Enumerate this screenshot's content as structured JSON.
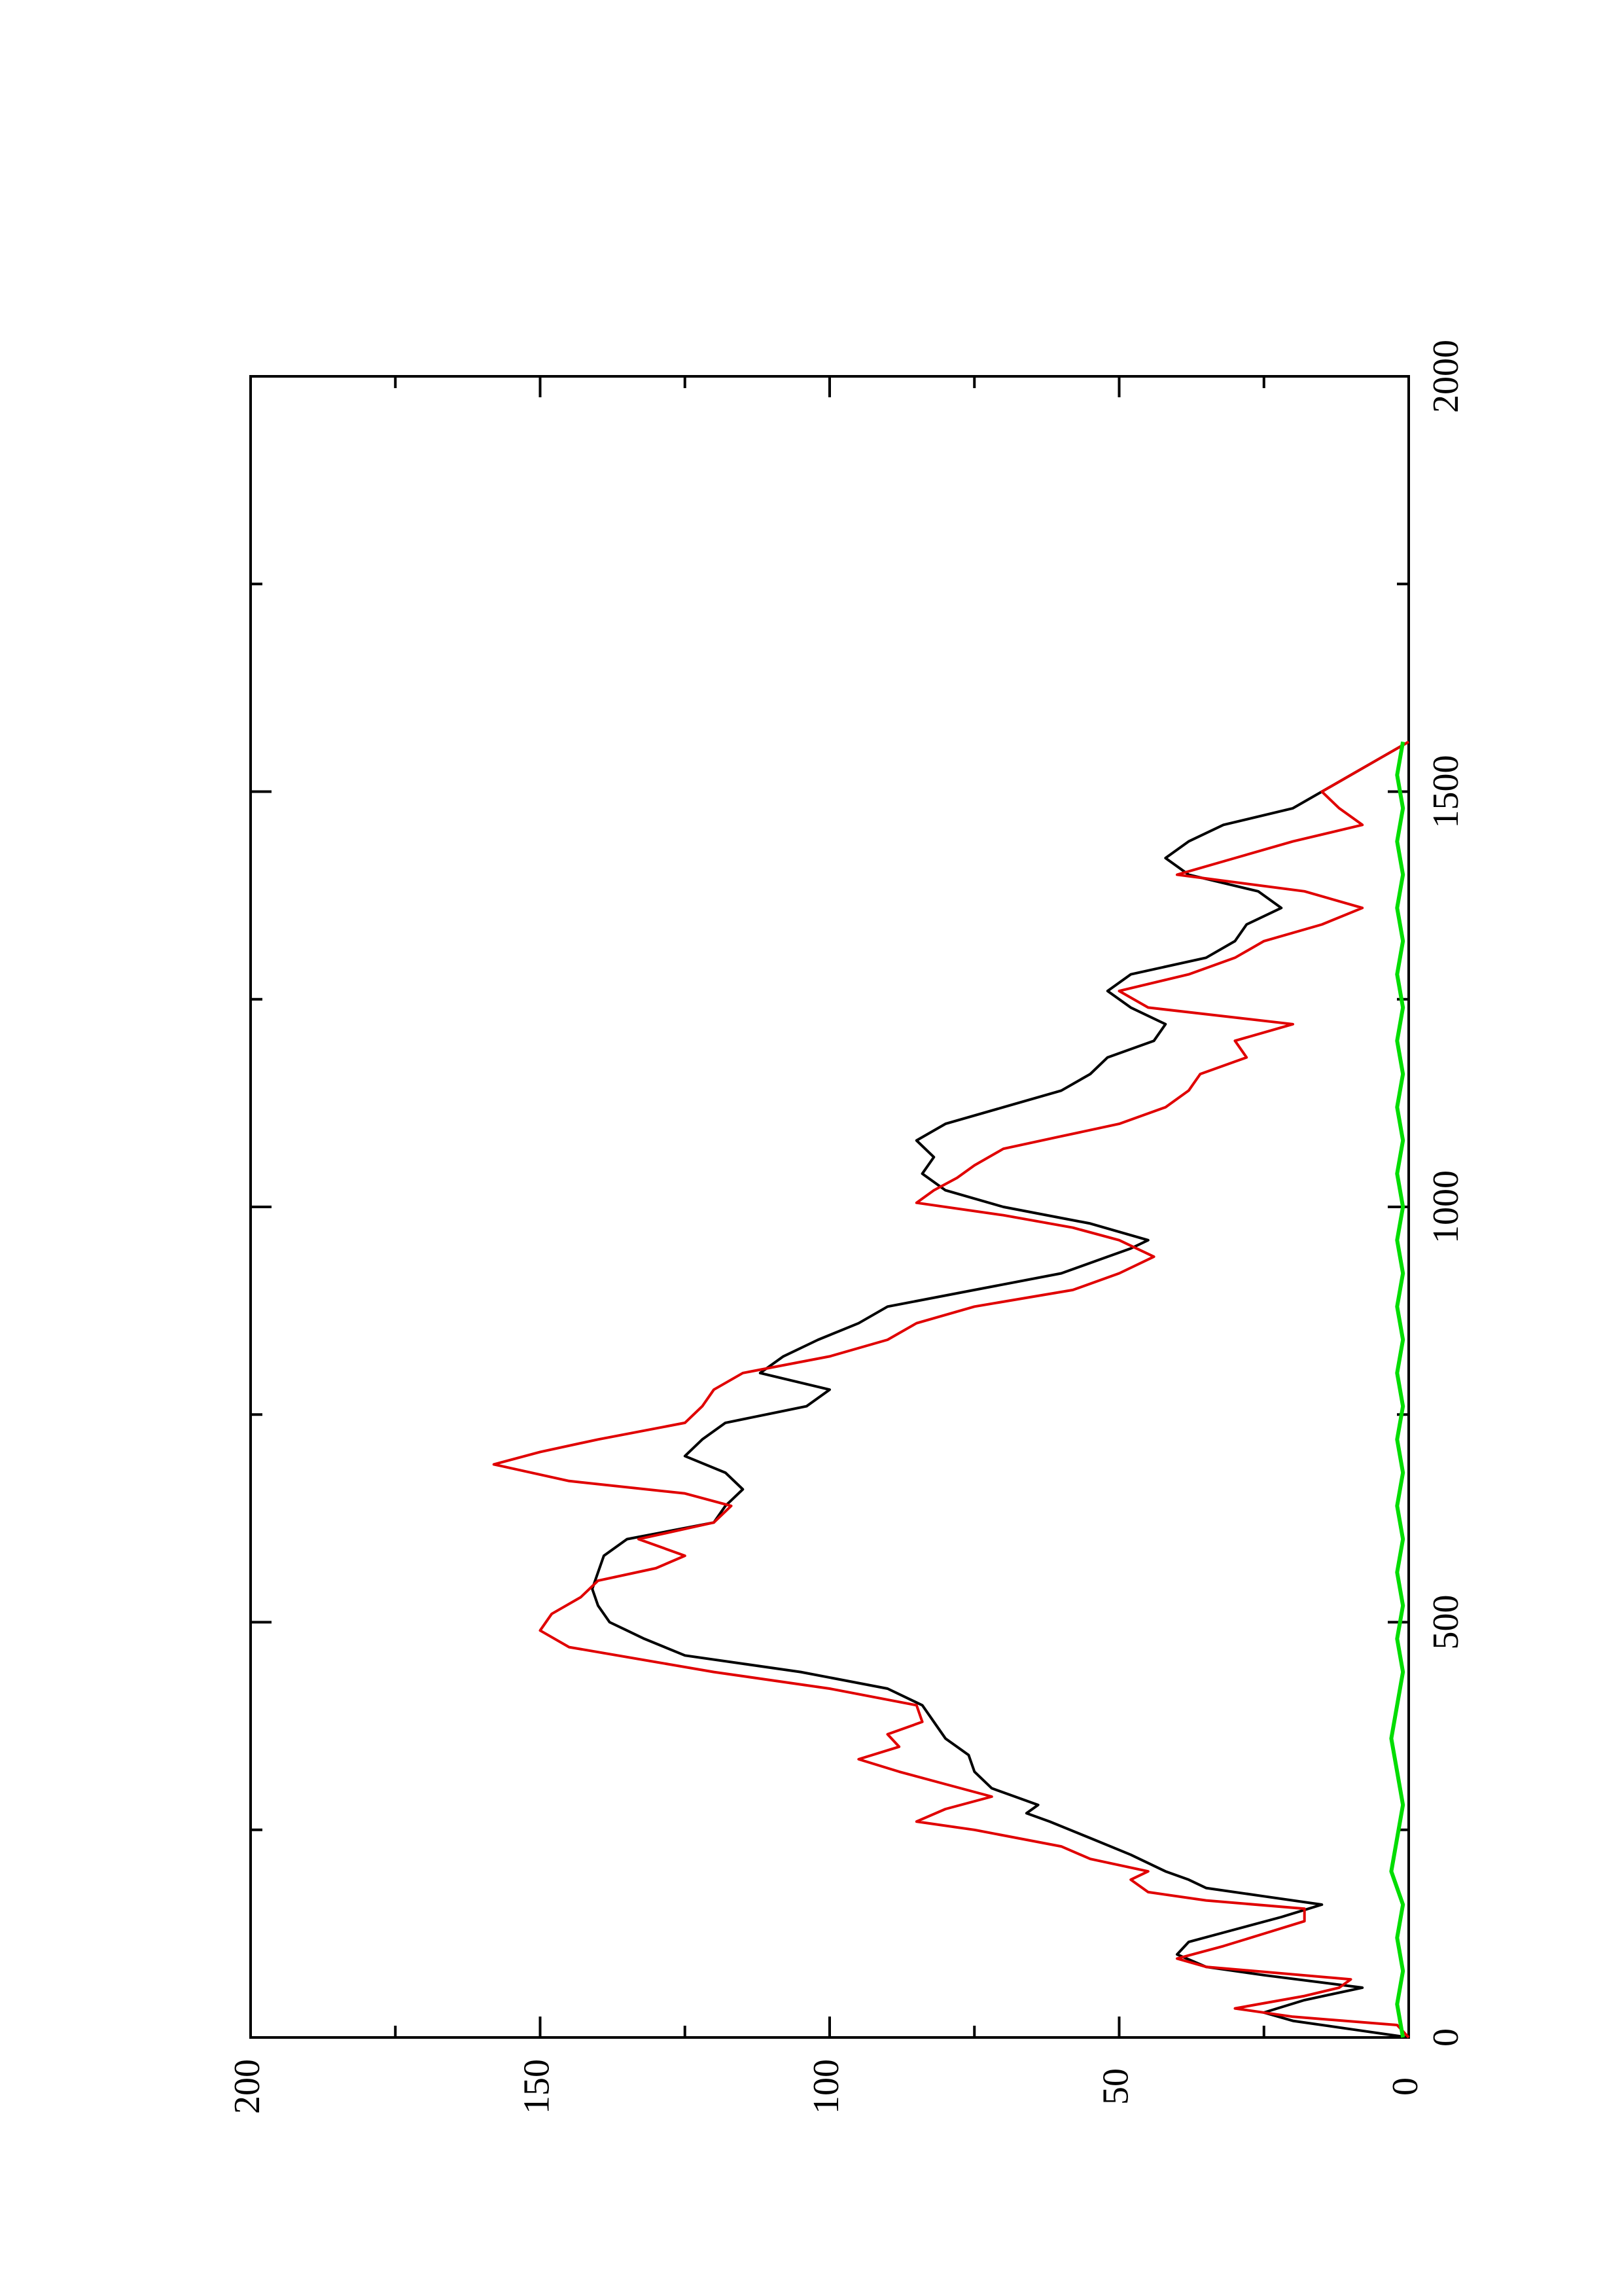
{
  "chart_data": {
    "type": "line",
    "orientation": "rotated-90-ccw",
    "title": "",
    "xlabel": "",
    "ylabel": "",
    "xlim": [
      0,
      2000
    ],
    "ylim": [
      0,
      200
    ],
    "x_ticks": [
      0,
      500,
      1000,
      1500,
      2000
    ],
    "x_minor_ticks": [
      250,
      750,
      1250,
      1750
    ],
    "y_ticks": [
      0,
      50,
      100,
      150,
      200
    ],
    "y_minor_ticks": [
      25,
      75,
      125,
      175
    ],
    "x_tick_labels": [
      "0",
      "500",
      "1000",
      "1500",
      "2000"
    ],
    "y_tick_labels": [
      "0",
      "50",
      "100",
      "150",
      "200"
    ],
    "grid": false,
    "legend": "none",
    "series": [
      {
        "color": "#000000",
        "x": [
          0,
          10,
          20,
          30,
          45,
          60,
          75,
          85,
          100,
          115,
          130,
          145,
          160,
          170,
          180,
          190,
          200,
          220,
          240,
          260,
          270,
          280,
          290,
          300,
          320,
          340,
          360,
          380,
          400,
          420,
          440,
          460,
          480,
          490,
          500,
          520,
          540,
          560,
          580,
          600,
          620,
          640,
          660,
          680,
          700,
          720,
          740,
          760,
          780,
          800,
          820,
          840,
          860,
          880,
          900,
          920,
          940,
          950,
          960,
          980,
          1000,
          1020,
          1040,
          1060,
          1080,
          1100,
          1120,
          1140,
          1160,
          1180,
          1200,
          1220,
          1240,
          1260,
          1280,
          1300,
          1320,
          1340,
          1360,
          1380,
          1400,
          1420,
          1440,
          1460,
          1480,
          1500,
          1520,
          1540,
          1560
        ],
        "y": [
          0,
          10,
          20,
          25,
          18,
          8,
          25,
          35,
          40,
          38,
          30,
          22,
          15,
          25,
          35,
          38,
          42,
          48,
          55,
          62,
          66,
          64,
          68,
          72,
          75,
          76,
          80,
          82,
          84,
          90,
          105,
          125,
          132,
          135,
          138,
          140,
          141,
          140,
          139,
          135,
          120,
          118,
          115,
          118,
          125,
          122,
          118,
          104,
          100,
          112,
          108,
          102,
          95,
          90,
          75,
          60,
          52,
          48,
          45,
          55,
          70,
          80,
          84,
          82,
          85,
          80,
          70,
          60,
          55,
          52,
          44,
          42,
          48,
          52,
          48,
          35,
          30,
          28,
          22,
          26,
          38,
          42,
          38,
          32,
          20,
          15,
          10,
          5,
          0
        ]
      },
      {
        "color": "#e00000",
        "x": [
          0,
          15,
          25,
          35,
          50,
          60,
          70,
          85,
          95,
          110,
          125,
          140,
          155,
          165,
          175,
          190,
          200,
          215,
          230,
          250,
          260,
          275,
          290,
          305,
          320,
          335,
          350,
          365,
          380,
          400,
          420,
          440,
          470,
          490,
          510,
          530,
          550,
          565,
          580,
          600,
          620,
          640,
          655,
          670,
          690,
          705,
          720,
          740,
          760,
          780,
          800,
          820,
          840,
          860,
          880,
          900,
          920,
          940,
          960,
          975,
          990,
          1005,
          1020,
          1035,
          1050,
          1070,
          1085,
          1100,
          1120,
          1140,
          1160,
          1180,
          1200,
          1220,
          1240,
          1260,
          1280,
          1300,
          1320,
          1340,
          1360,
          1380,
          1400,
          1420,
          1440,
          1460,
          1480,
          1500,
          1520,
          1540,
          1560
        ],
        "y": [
          0,
          2,
          20,
          30,
          18,
          12,
          10,
          35,
          40,
          32,
          25,
          18,
          18,
          35,
          45,
          48,
          45,
          55,
          60,
          75,
          85,
          80,
          72,
          80,
          88,
          95,
          88,
          90,
          84,
          85,
          100,
          120,
          145,
          150,
          148,
          143,
          140,
          130,
          125,
          133,
          120,
          117,
          125,
          145,
          158,
          150,
          140,
          125,
          122,
          120,
          115,
          100,
          90,
          85,
          75,
          58,
          50,
          44,
          50,
          58,
          70,
          85,
          82,
          78,
          75,
          70,
          60,
          50,
          42,
          38,
          36,
          28,
          30,
          20,
          45,
          50,
          38,
          30,
          25,
          15,
          8,
          18,
          40,
          30,
          20,
          8,
          12,
          15,
          10,
          5,
          0
        ]
      },
      {
        "color": "#00dd00",
        "x": [
          0,
          40,
          80,
          120,
          160,
          200,
          240,
          280,
          320,
          360,
          400,
          440,
          480,
          520,
          560,
          600,
          640,
          680,
          720,
          760,
          800,
          840,
          880,
          920,
          960,
          1000,
          1040,
          1080,
          1120,
          1160,
          1200,
          1240,
          1280,
          1320,
          1360,
          1400,
          1440,
          1480,
          1520,
          1560
        ],
        "y": [
          1,
          2,
          1,
          2,
          1,
          3,
          2,
          1,
          2,
          3,
          2,
          1,
          2,
          1,
          2,
          1,
          2,
          1,
          2,
          1,
          2,
          1,
          2,
          1,
          2,
          1,
          2,
          1,
          2,
          1,
          2,
          1,
          2,
          1,
          2,
          1,
          2,
          1,
          2,
          1
        ]
      }
    ]
  }
}
